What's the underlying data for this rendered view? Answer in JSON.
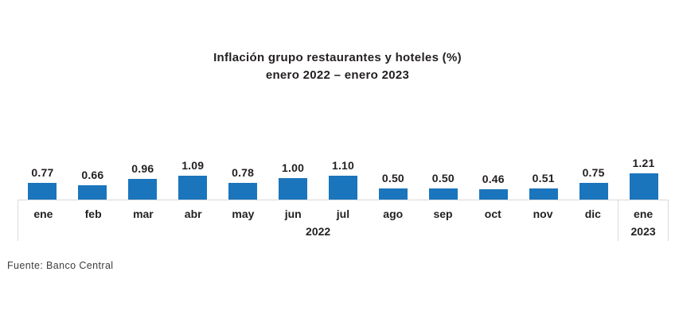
{
  "chart_data": {
    "type": "bar",
    "title": "Inflación grupo restaurantes y hoteles (%)",
    "subtitle": "enero 2022 – enero 2023",
    "categories": [
      "ene",
      "feb",
      "mar",
      "abr",
      "may",
      "jun",
      "jul",
      "ago",
      "sep",
      "oct",
      "nov",
      "dic",
      "ene"
    ],
    "values": [
      0.77,
      0.66,
      0.96,
      1.09,
      0.78,
      1.0,
      1.1,
      0.5,
      0.5,
      0.46,
      0.51,
      0.75,
      1.21
    ],
    "value_labels": [
      "0.77",
      "0.66",
      "0.96",
      "1.09",
      "0.78",
      "1.00",
      "1.10",
      "0.50",
      "0.50",
      "0.46",
      "0.51",
      "0.75",
      "1.21"
    ],
    "year_groups": [
      {
        "label": "2022",
        "span": 12
      },
      {
        "label": "2023",
        "span": 1
      }
    ],
    "xlabel": "",
    "ylabel": "",
    "ylim": [
      0,
      1.3
    ],
    "grid": false,
    "legend": false,
    "bar_color": "#1b75bc",
    "axis_line_color": "#d9d9d9",
    "text_color": "#231f20"
  },
  "footer": {
    "source": "Fuente: Banco Central"
  }
}
